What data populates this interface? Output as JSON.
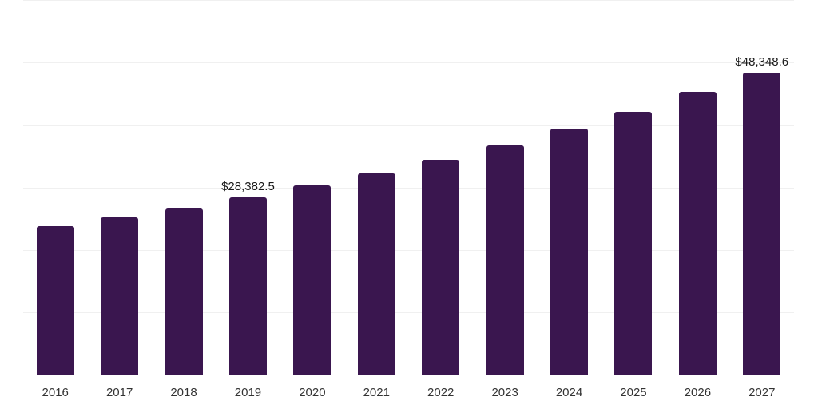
{
  "chart_data": {
    "type": "bar",
    "title": "",
    "xlabel": "",
    "ylabel": "",
    "categories": [
      "2016",
      "2017",
      "2018",
      "2019",
      "2020",
      "2021",
      "2022",
      "2023",
      "2024",
      "2025",
      "2026",
      "2027"
    ],
    "values": [
      23800,
      25200,
      26600,
      28382.5,
      30250,
      32200,
      34400,
      36700,
      39300,
      42100,
      45200,
      48348.6
    ],
    "data_labels": {
      "2019": "$28,382.5",
      "2027": "$48,348.6"
    },
    "ylim": [
      0,
      60000
    ],
    "grid_step": 10000,
    "grid": true,
    "legend": false,
    "y_axis_labels_visible": false,
    "colors": {
      "bar": "#3A164F",
      "gridline": "#f0f0f0",
      "axis": "#333333",
      "value_label": "#1a1a1a",
      "tick_label": "#333333",
      "background": "#ffffff"
    }
  }
}
